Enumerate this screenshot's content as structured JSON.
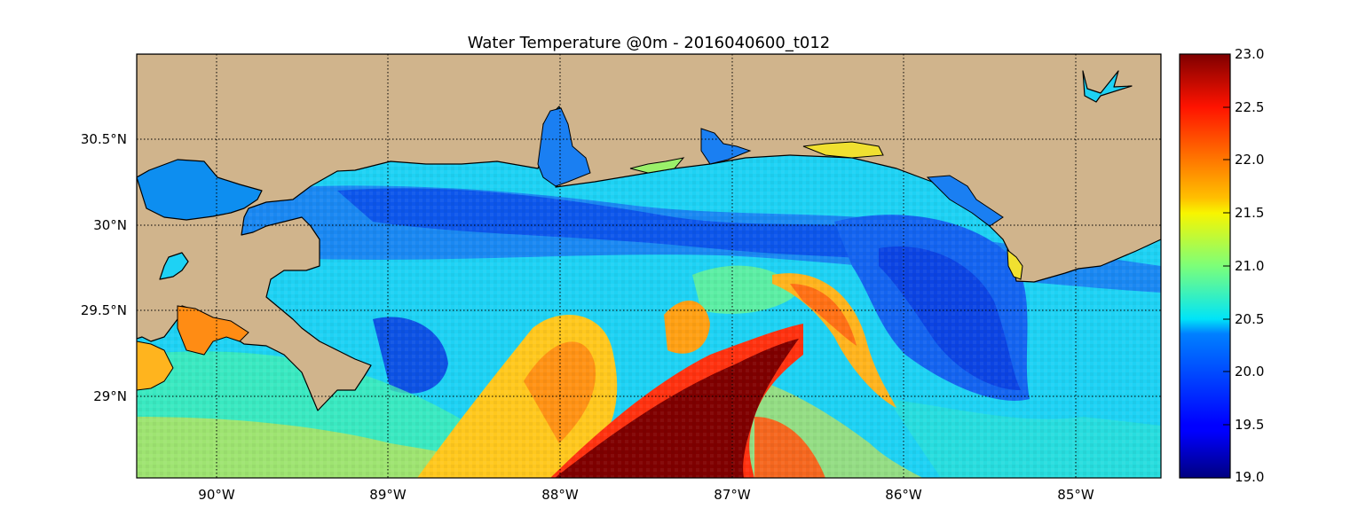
{
  "title": "Water Temperature @0m - 2016040600_t012",
  "map": {
    "lon_range": [
      -90.5,
      -84.5
    ],
    "lat_range": [
      28.53,
      31.0
    ],
    "land_color": "#d0b48c",
    "coast_color": "#000000",
    "grid": "dotted",
    "lon_ticks": [
      {
        "value": -90,
        "label": "90°W"
      },
      {
        "value": -89,
        "label": "89°W"
      },
      {
        "value": -88,
        "label": "88°W"
      },
      {
        "value": -87,
        "label": "87°W"
      },
      {
        "value": -86,
        "label": "86°W"
      },
      {
        "value": -85,
        "label": "85°W"
      }
    ],
    "lat_ticks": [
      {
        "value": 30.5,
        "label": "30.5°N"
      },
      {
        "value": 30.0,
        "label": "30°N"
      },
      {
        "value": 29.5,
        "label": "29.5°N"
      },
      {
        "value": 29.0,
        "label": "29°N"
      }
    ]
  },
  "colorbar": {
    "colormap": "jet",
    "range": [
      19.0,
      23.0
    ],
    "ticks": [
      {
        "value": 23.0,
        "label": "23.0"
      },
      {
        "value": 22.5,
        "label": "22.5"
      },
      {
        "value": 22.0,
        "label": "22.0"
      },
      {
        "value": 21.5,
        "label": "21.5"
      },
      {
        "value": 21.0,
        "label": "21.0"
      },
      {
        "value": 20.5,
        "label": "20.5"
      },
      {
        "value": 20.0,
        "label": "20.0"
      },
      {
        "value": 19.5,
        "label": "19.5"
      },
      {
        "value": 19.0,
        "label": "19.0"
      }
    ]
  }
}
